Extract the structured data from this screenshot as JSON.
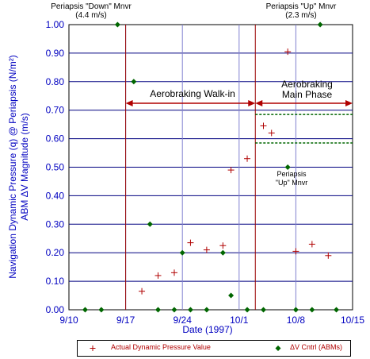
{
  "chart_data": {
    "type": "scatter",
    "xlabel": "Date (1997)",
    "ylabel": "Navigation Dynamic Pressure (q) @ Periapsis (N/m²)",
    "ylabel2": "ABM ΔV Magnitude (m/s)",
    "x_ticks": [
      "9/10",
      "9/17",
      "9/24",
      "10/1",
      "10/8",
      "10/15"
    ],
    "y_ticks": [
      "0.00",
      "0.10",
      "0.20",
      "0.30",
      "0.40",
      "0.50",
      "0.60",
      "0.70",
      "0.80",
      "0.90",
      "1.00"
    ],
    "xlim": [
      "1997-09-10",
      "1997-10-15"
    ],
    "ylim": [
      0,
      1.0
    ],
    "grid": true,
    "series": [
      {
        "name": "Actual Dynamic Pressure Value",
        "marker": "plus",
        "color": "#b00000",
        "x": [
          "1997-09-19",
          "1997-09-21",
          "1997-09-23",
          "1997-09-25",
          "1997-09-27",
          "1997-09-29",
          "1997-09-30",
          "1997-10-02",
          "1997-10-04",
          "1997-10-05",
          "1997-10-07",
          "1997-10-08",
          "1997-10-10",
          "1997-10-12"
        ],
        "y": [
          0.065,
          0.12,
          0.13,
          0.235,
          0.21,
          0.225,
          0.49,
          0.53,
          0.645,
          0.62,
          0.905,
          0.205,
          0.23,
          0.19
        ]
      },
      {
        "name": "ΔV Cntrl (ABMs)",
        "marker": "diamond",
        "color": "#006600",
        "x": [
          "1997-09-12",
          "1997-09-14",
          "1997-09-16",
          "1997-09-18",
          "1997-09-20",
          "1997-09-21",
          "1997-09-23",
          "1997-09-24",
          "1997-09-25",
          "1997-09-27",
          "1997-09-29",
          "1997-09-30",
          "1997-10-02",
          "1997-10-04",
          "1997-10-07",
          "1997-10-08",
          "1997-10-10",
          "1997-10-11",
          "1997-10-13"
        ],
        "y": [
          0.0,
          0.0,
          1.0,
          0.8,
          0.3,
          0.0,
          0.0,
          0.2,
          0.0,
          0.0,
          0.2,
          0.05,
          0.0,
          0.0,
          0.5,
          0.0,
          0.0,
          1.0,
          0.0
        ]
      }
    ],
    "vertical_markers": [
      {
        "x": "1997-09-17",
        "color": "#990000"
      },
      {
        "x": "1997-10-03",
        "color": "#990000"
      }
    ],
    "green_dashed_lines": [
      {
        "y": 0.685,
        "from": "1997-10-03",
        "to": "1997-10-15"
      },
      {
        "y": 0.585,
        "from": "1997-10-03",
        "to": "1997-10-15"
      }
    ],
    "annotations": {
      "down_mnvr_title": "Periapsis \"Down\" Mnvr",
      "down_mnvr_dv": "(4.4 m/s)",
      "up_mnvr_title": "Periapsis \"Up\" Mnvr",
      "up_mnvr_dv": "(2.3 m/s)",
      "walk_in": "Aerobraking Walk-in",
      "main_phase_1": "Aerobraking",
      "main_phase_2": "Main Phase",
      "up_mnvr_label_1": "Periapsis",
      "up_mnvr_label_2": "\"Up\" Mnvr"
    },
    "legend_placement": "bottom"
  }
}
